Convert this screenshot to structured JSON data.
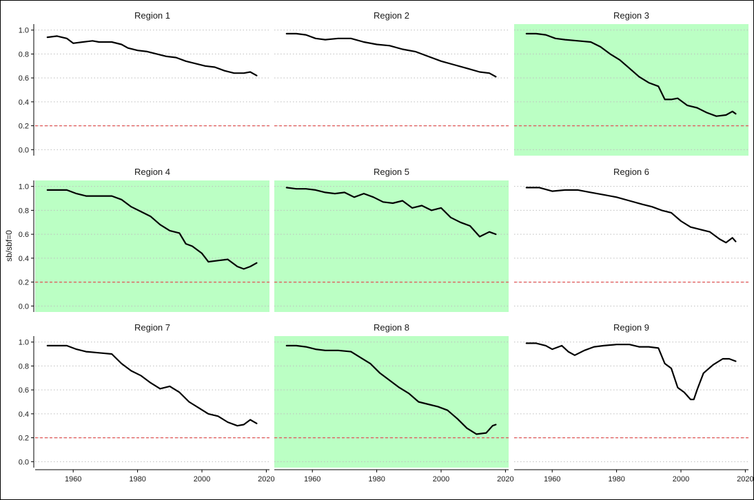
{
  "chart_data": {
    "type": "line",
    "ylabel": "sb/sbf=0",
    "xlabel": "",
    "xlim": [
      1950,
      2018
    ],
    "ylim": [
      -0.05,
      1.05
    ],
    "xticks": [
      1960,
      1980,
      2000,
      2020
    ],
    "yticks": [
      0.0,
      0.2,
      0.4,
      0.6,
      0.8,
      1.0
    ],
    "ytick_labels": [
      "0.0",
      "0.2",
      "0.4",
      "0.6",
      "0.8",
      "1.0"
    ],
    "grid": "horizontal dotted",
    "reference_line": {
      "y": 0.2,
      "style": "dashed",
      "color": "#e05555"
    },
    "highlight_color": "#bbffc4",
    "line_color": "#000000",
    "panels": [
      {
        "title": "Region 1",
        "highlight": false,
        "x": [
          1952,
          1955,
          1958,
          1960,
          1963,
          1966,
          1968,
          1972,
          1975,
          1977,
          1980,
          1983,
          1986,
          1989,
          1992,
          1995,
          1998,
          2001,
          2004,
          2007,
          2010,
          2013,
          2015,
          2017
        ],
        "y": [
          0.94,
          0.95,
          0.93,
          0.89,
          0.9,
          0.91,
          0.9,
          0.9,
          0.88,
          0.85,
          0.83,
          0.82,
          0.8,
          0.78,
          0.77,
          0.74,
          0.72,
          0.7,
          0.69,
          0.66,
          0.64,
          0.64,
          0.65,
          0.62
        ]
      },
      {
        "title": "Region 2",
        "highlight": false,
        "x": [
          1952,
          1955,
          1958,
          1961,
          1964,
          1968,
          1972,
          1976,
          1980,
          1984,
          1988,
          1992,
          1996,
          2000,
          2004,
          2008,
          2012,
          2015,
          2017
        ],
        "y": [
          0.97,
          0.97,
          0.96,
          0.93,
          0.92,
          0.93,
          0.93,
          0.9,
          0.88,
          0.87,
          0.84,
          0.82,
          0.78,
          0.74,
          0.71,
          0.68,
          0.65,
          0.64,
          0.61
        ]
      },
      {
        "title": "Region 3",
        "highlight": true,
        "x": [
          1952,
          1955,
          1958,
          1961,
          1964,
          1968,
          1972,
          1975,
          1978,
          1981,
          1984,
          1987,
          1990,
          1993,
          1995,
          1997,
          1999,
          2002,
          2005,
          2008,
          2011,
          2014,
          2016,
          2017
        ],
        "y": [
          0.97,
          0.97,
          0.96,
          0.93,
          0.92,
          0.91,
          0.9,
          0.86,
          0.8,
          0.75,
          0.68,
          0.61,
          0.56,
          0.53,
          0.42,
          0.42,
          0.43,
          0.37,
          0.35,
          0.31,
          0.28,
          0.29,
          0.32,
          0.3
        ]
      },
      {
        "title": "Region 4",
        "highlight": true,
        "x": [
          1952,
          1955,
          1958,
          1961,
          1964,
          1968,
          1972,
          1975,
          1978,
          1981,
          1984,
          1987,
          1990,
          1993,
          1995,
          1997,
          2000,
          2002,
          2005,
          2008,
          2011,
          2013,
          2015,
          2017
        ],
        "y": [
          0.97,
          0.97,
          0.97,
          0.94,
          0.92,
          0.92,
          0.92,
          0.89,
          0.83,
          0.79,
          0.75,
          0.68,
          0.63,
          0.61,
          0.52,
          0.5,
          0.44,
          0.37,
          0.38,
          0.39,
          0.33,
          0.31,
          0.33,
          0.36
        ]
      },
      {
        "title": "Region 5",
        "highlight": true,
        "x": [
          1952,
          1955,
          1958,
          1961,
          1964,
          1967,
          1970,
          1973,
          1976,
          1979,
          1982,
          1985,
          1988,
          1991,
          1994,
          1997,
          2000,
          2003,
          2006,
          2009,
          2012,
          2015,
          2017
        ],
        "y": [
          0.99,
          0.98,
          0.98,
          0.97,
          0.95,
          0.94,
          0.95,
          0.91,
          0.94,
          0.91,
          0.87,
          0.86,
          0.88,
          0.82,
          0.84,
          0.8,
          0.82,
          0.74,
          0.7,
          0.67,
          0.58,
          0.62,
          0.6
        ]
      },
      {
        "title": "Region 6",
        "highlight": false,
        "x": [
          1952,
          1956,
          1960,
          1964,
          1968,
          1972,
          1976,
          1980,
          1984,
          1988,
          1991,
          1994,
          1997,
          2000,
          2003,
          2006,
          2009,
          2012,
          2014,
          2016,
          2017
        ],
        "y": [
          0.99,
          0.99,
          0.96,
          0.97,
          0.97,
          0.95,
          0.93,
          0.91,
          0.88,
          0.85,
          0.83,
          0.8,
          0.78,
          0.71,
          0.66,
          0.64,
          0.62,
          0.56,
          0.53,
          0.57,
          0.54
        ]
      },
      {
        "title": "Region 7",
        "highlight": false,
        "x": [
          1952,
          1955,
          1958,
          1961,
          1964,
          1968,
          1972,
          1975,
          1978,
          1981,
          1984,
          1987,
          1990,
          1993,
          1996,
          1999,
          2002,
          2005,
          2008,
          2011,
          2013,
          2015,
          2017
        ],
        "y": [
          0.97,
          0.97,
          0.97,
          0.94,
          0.92,
          0.91,
          0.9,
          0.82,
          0.76,
          0.72,
          0.66,
          0.61,
          0.63,
          0.58,
          0.5,
          0.45,
          0.4,
          0.38,
          0.33,
          0.3,
          0.31,
          0.35,
          0.32
        ]
      },
      {
        "title": "Region 8",
        "highlight": true,
        "x": [
          1952,
          1955,
          1958,
          1961,
          1964,
          1968,
          1972,
          1975,
          1978,
          1981,
          1984,
          1987,
          1990,
          1993,
          1996,
          1999,
          2002,
          2005,
          2008,
          2011,
          2014,
          2016,
          2017
        ],
        "y": [
          0.97,
          0.97,
          0.96,
          0.94,
          0.93,
          0.93,
          0.92,
          0.87,
          0.82,
          0.74,
          0.68,
          0.62,
          0.57,
          0.5,
          0.48,
          0.46,
          0.43,
          0.36,
          0.28,
          0.23,
          0.24,
          0.3,
          0.31
        ]
      },
      {
        "title": "Region 9",
        "highlight": false,
        "x": [
          1952,
          1955,
          1958,
          1960,
          1963,
          1965,
          1967,
          1970,
          1973,
          1976,
          1980,
          1984,
          1987,
          1990,
          1993,
          1995,
          1997,
          1999,
          2001,
          2003,
          2004,
          2005,
          2007,
          2010,
          2013,
          2015,
          2017
        ],
        "y": [
          0.99,
          0.99,
          0.97,
          0.94,
          0.97,
          0.92,
          0.89,
          0.93,
          0.96,
          0.97,
          0.98,
          0.98,
          0.96,
          0.96,
          0.95,
          0.82,
          0.78,
          0.62,
          0.58,
          0.52,
          0.52,
          0.6,
          0.74,
          0.81,
          0.86,
          0.86,
          0.84
        ]
      }
    ]
  }
}
